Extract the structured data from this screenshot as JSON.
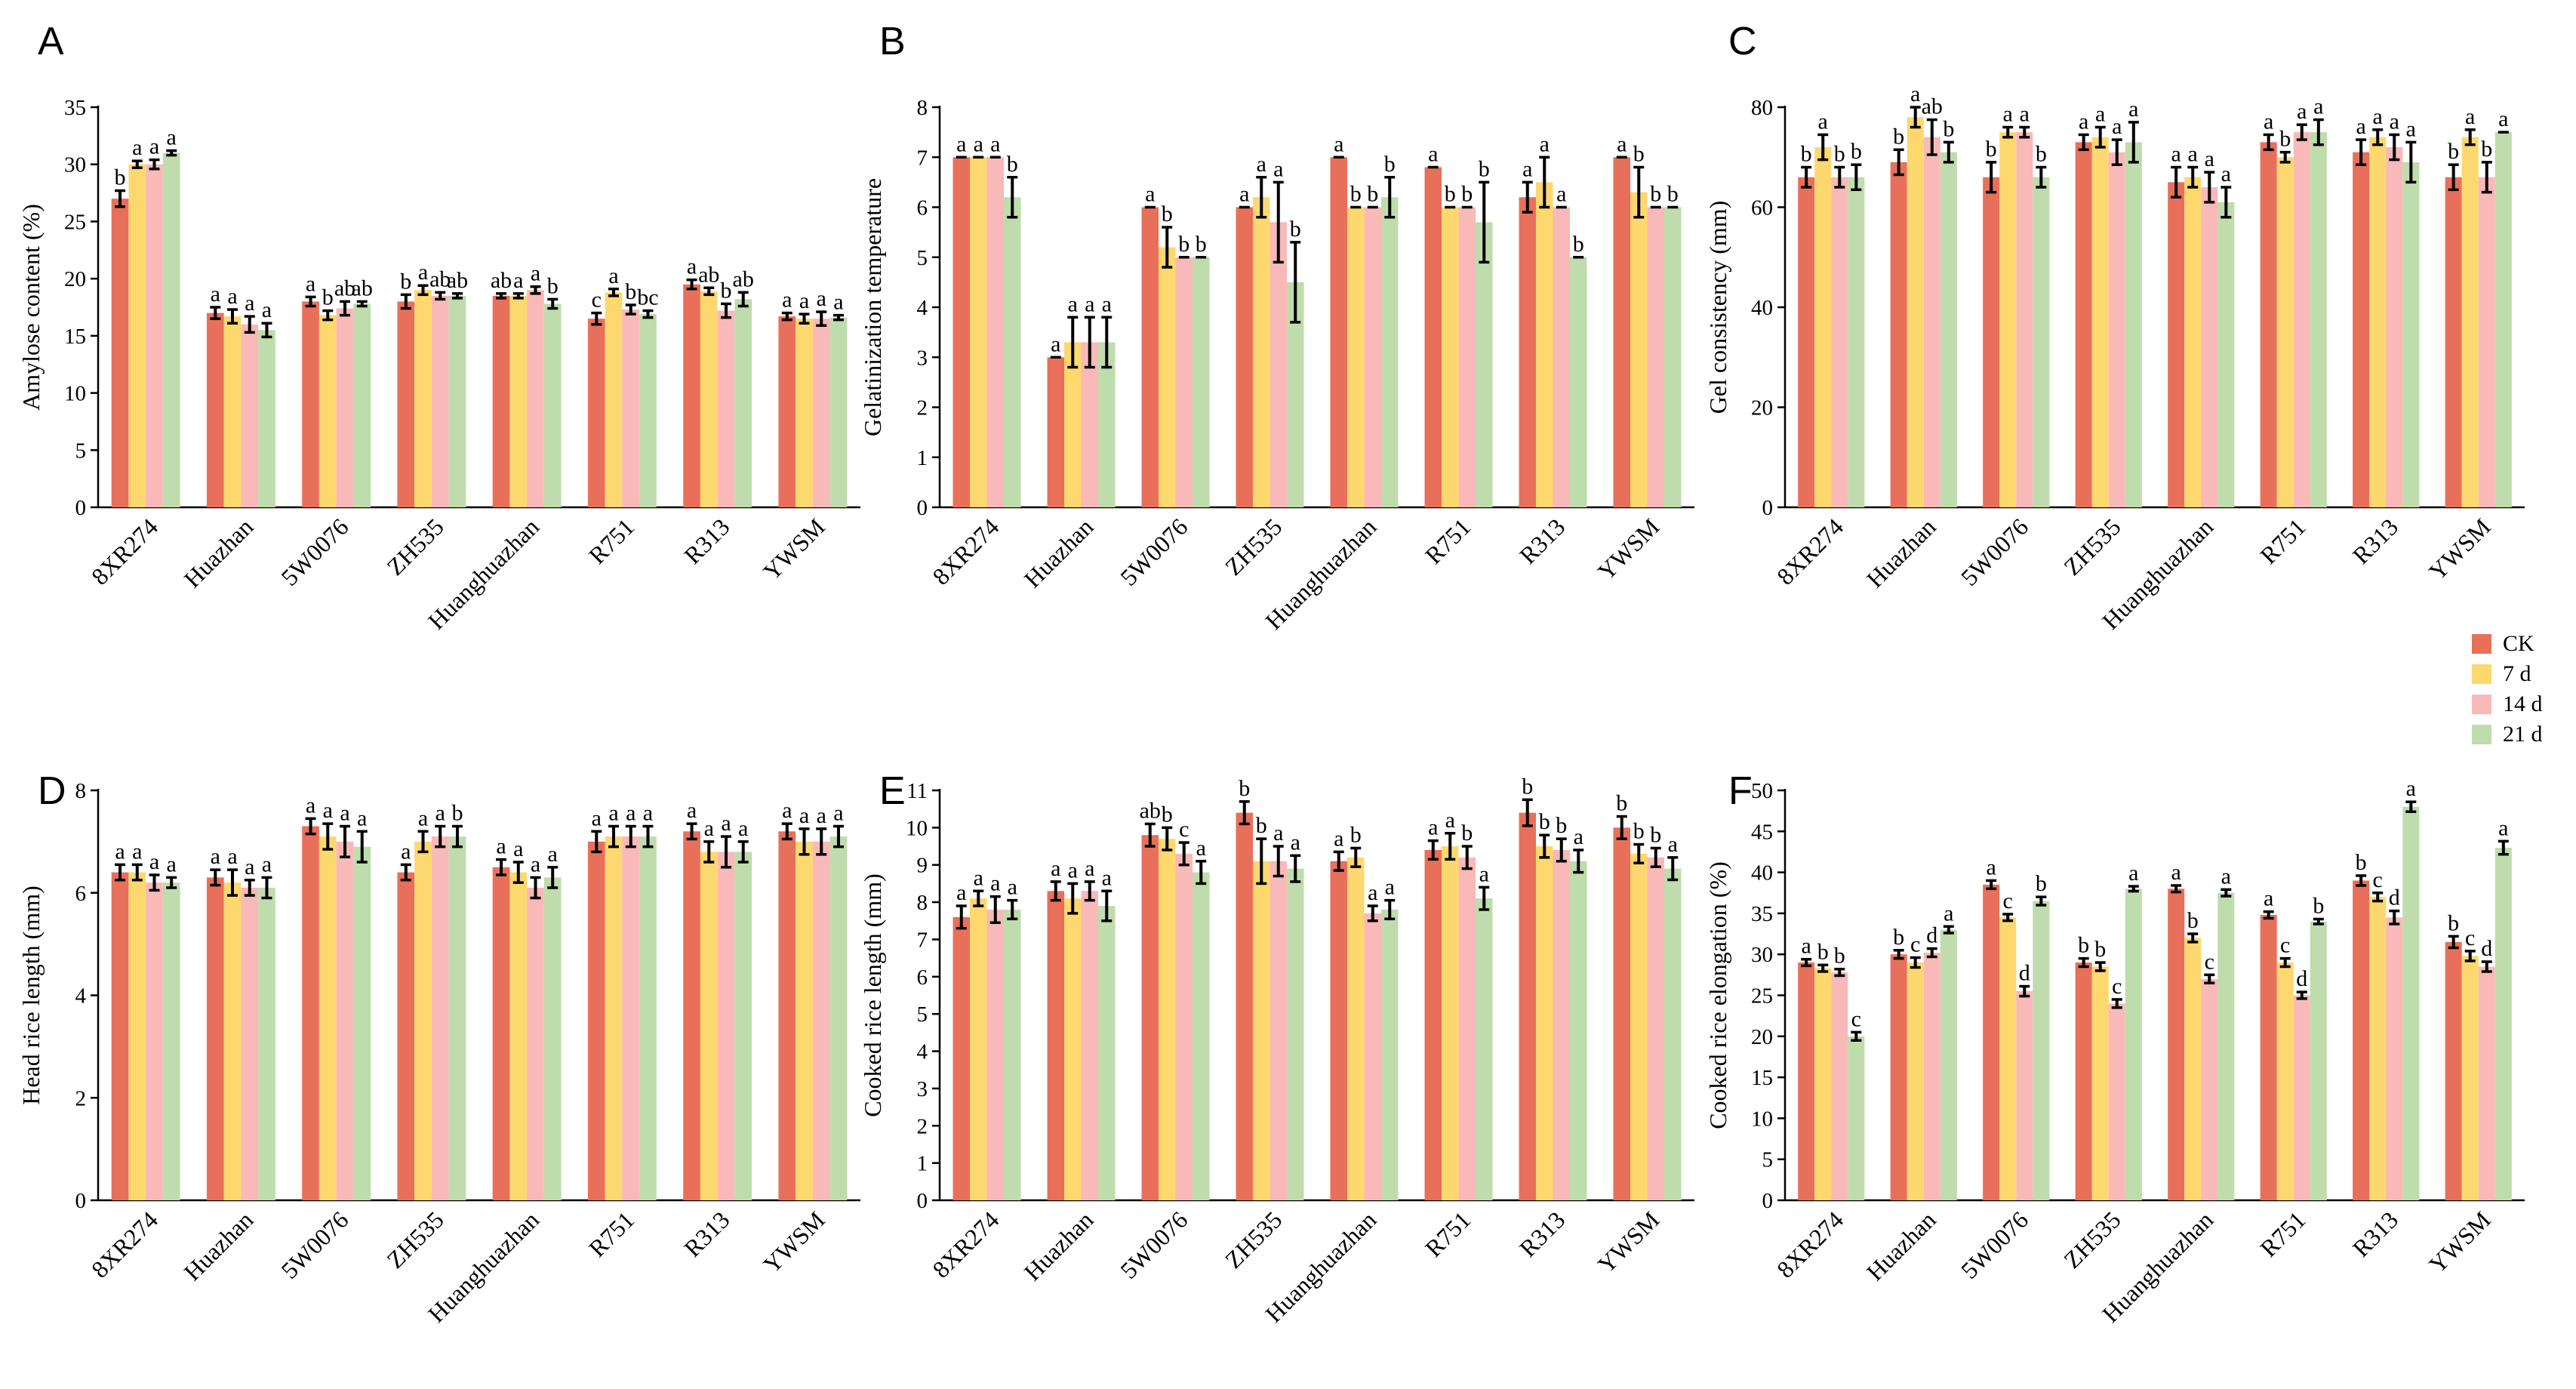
{
  "colors": {
    "CK": "#e8705a",
    "7 d": "#fdd86f",
    "14 d": "#f9b9b9",
    "21 d": "#bfdcad"
  },
  "legend": [
    "CK",
    "7 d",
    "14 d",
    "21 d"
  ],
  "chart_data": [
    {
      "panel": "A",
      "type": "bar",
      "ylabel": "Amylose content (%)",
      "ylim": [
        0,
        35
      ],
      "yticks": [
        0,
        5,
        10,
        15,
        20,
        25,
        30,
        35
      ],
      "categories": [
        "8XR274",
        "Huazhan",
        "5W0076",
        "ZH535",
        "Huanghuazhan",
        "R751",
        "R313",
        "YWSM"
      ],
      "series": [
        {
          "name": "CK",
          "values": [
            27,
            17,
            18,
            18,
            18.5,
            16.5,
            19.5,
            16.7
          ],
          "errors": [
            0.7,
            0.5,
            0.4,
            0.6,
            0.2,
            0.5,
            0.4,
            0.3
          ],
          "letters": [
            "b",
            "a",
            "a",
            "b",
            "ab",
            "c",
            "a",
            "a"
          ]
        },
        {
          "name": "7 d",
          "values": [
            30,
            16.7,
            16.8,
            19,
            18.5,
            18.8,
            18.9,
            16.5
          ],
          "errors": [
            0.3,
            0.6,
            0.4,
            0.4,
            0.2,
            0.3,
            0.3,
            0.4
          ],
          "letters": [
            "a",
            "a",
            "b",
            "a",
            "a",
            "a",
            "ab",
            "a"
          ]
        },
        {
          "name": "14 d",
          "values": [
            30,
            16,
            17.4,
            18.5,
            19,
            17.3,
            17.2,
            16.5
          ],
          "errors": [
            0.4,
            0.7,
            0.6,
            0.3,
            0.3,
            0.4,
            0.6,
            0.6
          ],
          "letters": [
            "a",
            "a",
            "ab",
            "ab",
            "a",
            "b",
            "b",
            "a"
          ]
        },
        {
          "name": "21 d",
          "values": [
            31,
            15.5,
            17.8,
            18.5,
            17.8,
            16.9,
            18.2,
            16.6
          ],
          "errors": [
            0.2,
            0.6,
            0.2,
            0.2,
            0.4,
            0.3,
            0.6,
            0.2
          ],
          "letters": [
            "a",
            "a",
            "ab",
            "ab",
            "b",
            "bc",
            "ab",
            "a"
          ]
        }
      ]
    },
    {
      "panel": "B",
      "type": "bar",
      "ylabel": "Gelatinization temperature",
      "ylim": [
        0,
        8
      ],
      "yticks": [
        0,
        1,
        2,
        3,
        4,
        5,
        6,
        7,
        8
      ],
      "categories": [
        "8XR274",
        "Huazhan",
        "5W0076",
        "ZH535",
        "Huanghuazhan",
        "R751",
        "R313",
        "YWSM"
      ],
      "series": [
        {
          "name": "CK",
          "values": [
            7,
            3,
            6,
            6,
            7,
            6.8,
            6.2,
            7
          ],
          "errors": [
            0,
            0,
            0,
            0,
            0,
            0,
            0.3,
            0
          ],
          "letters": [
            "a",
            "a",
            "a",
            "a",
            "a",
            "a",
            "a",
            "a"
          ]
        },
        {
          "name": "7 d",
          "values": [
            7,
            3.3,
            5.2,
            6.2,
            6,
            6,
            6.5,
            6.3
          ],
          "errors": [
            0,
            0.5,
            0.4,
            0.4,
            0,
            0,
            0.5,
            0.5
          ],
          "letters": [
            "a",
            "a",
            "b",
            "a",
            "b",
            "b",
            "a",
            "b"
          ]
        },
        {
          "name": "14 d",
          "values": [
            7,
            3.3,
            5,
            5.7,
            6,
            6,
            6,
            6
          ],
          "errors": [
            0,
            0.5,
            0,
            0.8,
            0,
            0,
            0,
            0
          ],
          "letters": [
            "a",
            "a",
            "b",
            "a",
            "b",
            "b",
            "a",
            "b"
          ]
        },
        {
          "name": "21 d",
          "values": [
            6.2,
            3.3,
            5,
            4.5,
            6.2,
            5.7,
            5,
            6
          ],
          "errors": [
            0.4,
            0.5,
            0,
            0.8,
            0.4,
            0.8,
            0,
            0
          ],
          "letters": [
            "b",
            "a",
            "b",
            "b",
            "b",
            "b",
            "b",
            "b"
          ]
        }
      ]
    },
    {
      "panel": "C",
      "type": "bar",
      "ylabel": "Gel consistency (mm)",
      "ylim": [
        0,
        80
      ],
      "yticks": [
        0,
        20,
        40,
        60,
        80
      ],
      "categories": [
        "8XR274",
        "Huazhan",
        "5W0076",
        "ZH535",
        "Huanghuazhan",
        "R751",
        "R313",
        "YWSM"
      ],
      "series": [
        {
          "name": "CK",
          "values": [
            66,
            69,
            66,
            73,
            65,
            73,
            71,
            66
          ],
          "errors": [
            2,
            2.5,
            3,
            1.5,
            3,
            1.5,
            2.5,
            2.5
          ],
          "letters": [
            "b",
            "b",
            "b",
            "a",
            "a",
            "a",
            "a",
            "b"
          ]
        },
        {
          "name": "7 d",
          "values": [
            72,
            78,
            75,
            74,
            66,
            70,
            74,
            74
          ],
          "errors": [
            2.5,
            2,
            1,
            2,
            2,
            1,
            1.5,
            1.5
          ],
          "letters": [
            "a",
            "a",
            "a",
            "a",
            "a",
            "b",
            "a",
            "a"
          ]
        },
        {
          "name": "14 d",
          "values": [
            66,
            74,
            75,
            71,
            64,
            75,
            72,
            66
          ],
          "errors": [
            2,
            3.5,
            1,
            2.5,
            3,
            1.5,
            2.5,
            3
          ],
          "letters": [
            "b",
            "ab",
            "a",
            "a",
            "a",
            "a",
            "a",
            "b"
          ]
        },
        {
          "name": "21 d",
          "values": [
            66,
            71,
            66,
            73,
            61,
            75,
            69,
            75
          ],
          "errors": [
            2.5,
            2,
            2,
            4,
            3,
            2.5,
            4,
            0
          ],
          "letters": [
            "b",
            "b",
            "b",
            "a",
            "a",
            "a",
            "a",
            "a"
          ]
        }
      ]
    },
    {
      "panel": "D",
      "type": "bar",
      "ylabel": "Head rice length (mm)",
      "ylim": [
        0,
        8
      ],
      "yticks": [
        0,
        2,
        4,
        6,
        8
      ],
      "categories": [
        "8XR274",
        "Huazhan",
        "5W0076",
        "ZH535",
        "Huanghuazhan",
        "R751",
        "R313",
        "YWSM"
      ],
      "series": [
        {
          "name": "CK",
          "values": [
            6.4,
            6.3,
            7.3,
            6.4,
            6.5,
            7,
            7.2,
            7.2
          ],
          "errors": [
            0.15,
            0.15,
            0.15,
            0.15,
            0.15,
            0.2,
            0.15,
            0.15
          ],
          "letters": [
            "a",
            "a",
            "a",
            "a",
            "a",
            "a",
            "a",
            "a"
          ]
        },
        {
          "name": "7 d",
          "values": [
            6.4,
            6.2,
            7.1,
            7,
            6.4,
            7.1,
            6.8,
            7
          ],
          "errors": [
            0.15,
            0.25,
            0.25,
            0.2,
            0.2,
            0.2,
            0.2,
            0.25
          ],
          "letters": [
            "a",
            "a",
            "a",
            "a",
            "a",
            "a",
            "a",
            "a"
          ]
        },
        {
          "name": "14 d",
          "values": [
            6.2,
            6.1,
            7,
            7.1,
            6.1,
            7.1,
            6.8,
            7
          ],
          "errors": [
            0.15,
            0.15,
            0.3,
            0.2,
            0.2,
            0.2,
            0.3,
            0.25
          ],
          "letters": [
            "a",
            "a",
            "a",
            "a",
            "a",
            "a",
            "a",
            "a"
          ]
        },
        {
          "name": "21 d",
          "values": [
            6.2,
            6.1,
            6.9,
            7.1,
            6.3,
            7.1,
            6.8,
            7.1
          ],
          "errors": [
            0.1,
            0.2,
            0.3,
            0.2,
            0.2,
            0.2,
            0.2,
            0.2
          ],
          "letters": [
            "a",
            "a",
            "a",
            "b",
            "a",
            "a",
            "a",
            "a"
          ]
        }
      ]
    },
    {
      "panel": "E",
      "type": "bar",
      "ylabel": "Cooked rice length (mm)",
      "ylim": [
        0,
        11
      ],
      "yticks": [
        0,
        1,
        2,
        3,
        4,
        5,
        6,
        7,
        8,
        9,
        10,
        11
      ],
      "categories": [
        "8XR274",
        "Huazhan",
        "5W0076",
        "ZH535",
        "Huanghuazhan",
        "R751",
        "R313",
        "YWSM"
      ],
      "series": [
        {
          "name": "CK",
          "values": [
            7.6,
            8.3,
            9.8,
            10.4,
            9.1,
            9.4,
            10.4,
            10
          ],
          "errors": [
            0.3,
            0.25,
            0.3,
            0.3,
            0.25,
            0.25,
            0.35,
            0.3
          ],
          "letters": [
            "a",
            "a",
            "ab",
            "b",
            "a",
            "a",
            "b",
            "b"
          ]
        },
        {
          "name": "7 d",
          "values": [
            8.1,
            8.1,
            9.7,
            9.1,
            9.2,
            9.5,
            9.5,
            9.3
          ],
          "errors": [
            0.2,
            0.4,
            0.3,
            0.6,
            0.25,
            0.35,
            0.3,
            0.25
          ],
          "letters": [
            "a",
            "a",
            "b",
            "b",
            "b",
            "a",
            "b",
            "b"
          ]
        },
        {
          "name": "14 d",
          "values": [
            7.8,
            8.3,
            9.3,
            9.1,
            7.7,
            9.2,
            9.4,
            9.2
          ],
          "errors": [
            0.35,
            0.25,
            0.3,
            0.4,
            0.2,
            0.3,
            0.3,
            0.25
          ],
          "letters": [
            "a",
            "a",
            "c",
            "a",
            "a",
            "b",
            "b",
            "b"
          ]
        },
        {
          "name": "21 d",
          "values": [
            7.8,
            7.9,
            8.8,
            8.9,
            7.8,
            8.1,
            9.1,
            8.9
          ],
          "errors": [
            0.25,
            0.4,
            0.3,
            0.35,
            0.25,
            0.3,
            0.3,
            0.3
          ],
          "letters": [
            "a",
            "a",
            "a",
            "a",
            "a",
            "a",
            "a",
            "a"
          ]
        }
      ]
    },
    {
      "panel": "F",
      "type": "bar",
      "ylabel": "Cooked rice elongation (%)",
      "ylim": [
        0,
        50
      ],
      "yticks": [
        0,
        5,
        10,
        15,
        20,
        25,
        30,
        35,
        40,
        45,
        50
      ],
      "categories": [
        "8XR274",
        "Huazhan",
        "5W0076",
        "ZH535",
        "Huanghuazhan",
        "R751",
        "R313",
        "YWSM"
      ],
      "series": [
        {
          "name": "CK",
          "values": [
            29,
            30,
            38.5,
            29,
            38,
            34.8,
            39,
            31.5
          ],
          "errors": [
            0.4,
            0.5,
            0.5,
            0.5,
            0.4,
            0.4,
            0.6,
            0.7
          ],
          "letters": [
            "a",
            "b",
            "a",
            "b",
            "a",
            "a",
            "b",
            "b"
          ]
        },
        {
          "name": "7 d",
          "values": [
            28.3,
            29,
            34.5,
            28.5,
            32,
            29,
            37,
            29.8
          ],
          "errors": [
            0.4,
            0.6,
            0.4,
            0.5,
            0.5,
            0.5,
            0.5,
            0.6
          ],
          "letters": [
            "b",
            "c",
            "c",
            "b",
            "b",
            "c",
            "c",
            "c"
          ]
        },
        {
          "name": "14 d",
          "values": [
            27.8,
            30.2,
            25.5,
            24,
            27,
            25,
            34.5,
            28.5
          ],
          "errors": [
            0.4,
            0.5,
            0.6,
            0.5,
            0.5,
            0.4,
            0.8,
            0.6
          ],
          "letters": [
            "b",
            "d",
            "d",
            "c",
            "c",
            "d",
            "d",
            "d"
          ]
        },
        {
          "name": "21 d",
          "values": [
            20,
            33,
            36.5,
            38,
            37.5,
            34,
            48,
            43
          ],
          "errors": [
            0.5,
            0.4,
            0.5,
            0.3,
            0.4,
            0.3,
            0.6,
            0.8
          ],
          "letters": [
            "c",
            "a",
            "b",
            "a",
            "a",
            "b",
            "a",
            "a"
          ]
        }
      ]
    }
  ]
}
